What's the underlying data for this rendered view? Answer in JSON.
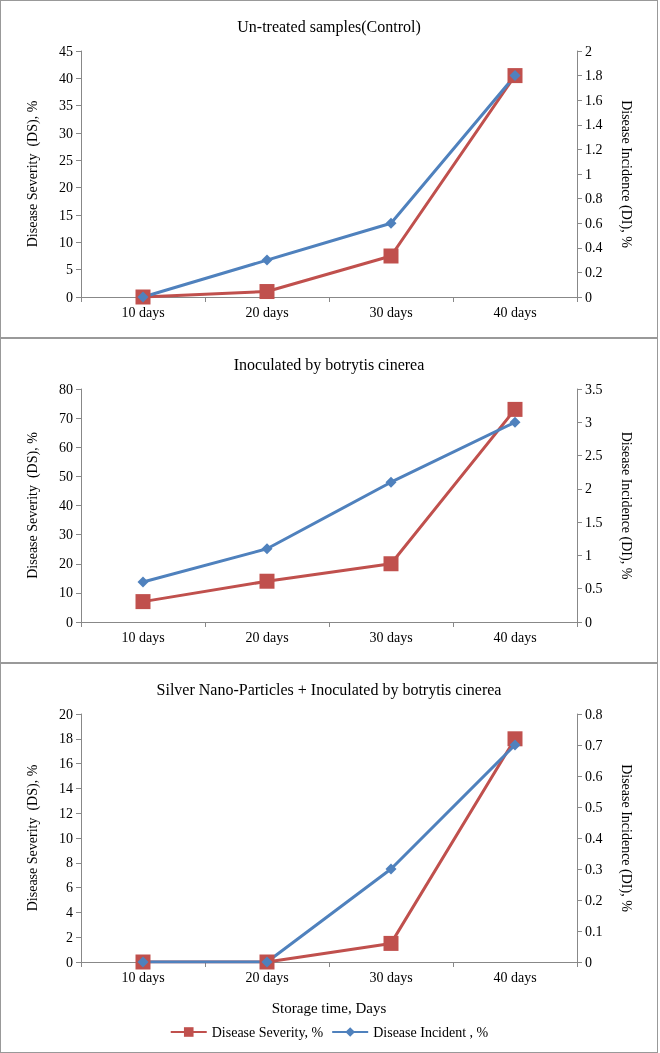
{
  "chart_data": [
    {
      "type": "line",
      "title": "Un-treated samples(Control)",
      "ylabel": "Disease Severity  (DS), %",
      "y2label": "Disease Incidence (DI), %",
      "categories": [
        "10 days",
        "20 days",
        "30 days",
        "40 days"
      ],
      "series": [
        {
          "color": "#c0504d",
          "marker": "square",
          "values": [
            0,
            1,
            7.5,
            40.5
          ]
        },
        {
          "color": "#4f81bd",
          "marker": "diamond",
          "axis": "y2",
          "values": [
            0,
            0.3,
            0.6,
            1.8
          ]
        }
      ],
      "ylim": [
        0,
        45
      ],
      "yticks": [
        0,
        5,
        10,
        15,
        20,
        25,
        30,
        35,
        40,
        45
      ],
      "y2lim": [
        0,
        2
      ],
      "y2ticks": [
        0,
        0.2,
        0.4,
        0.6,
        0.8,
        1,
        1.2,
        1.4,
        1.6,
        1.8,
        2
      ],
      "grid": false,
      "legend": false
    },
    {
      "type": "line",
      "title": "Inoculated by botrytis cinerea",
      "ylabel": "Disease Severity  (DS), %",
      "y2label": "Disease Incidence (DI), %",
      "categories": [
        "10 days",
        "20 days",
        "30 days",
        "40 days"
      ],
      "series": [
        {
          "color": "#c0504d",
          "marker": "square",
          "values": [
            7,
            14,
            20,
            73
          ]
        },
        {
          "color": "#4f81bd",
          "marker": "diamond",
          "axis": "y2",
          "values": [
            0.6,
            1.1,
            2.1,
            3
          ]
        }
      ],
      "ylim": [
        0,
        80
      ],
      "yticks": [
        0,
        10,
        20,
        30,
        40,
        50,
        60,
        70,
        80
      ],
      "y2lim": [
        0,
        3.5
      ],
      "y2ticks": [
        0,
        0.5,
        1,
        1.5,
        2,
        2.5,
        3,
        3.5
      ],
      "grid": false,
      "legend": false
    },
    {
      "type": "line",
      "title": "Silver Nano-Particles + Inoculated by botrytis cinerea",
      "xlabel": "Storage time, Days",
      "ylabel": "Disease Severity  (DS), %",
      "y2label": "Disease Incidence (DI), %",
      "categories": [
        "10 days",
        "20 days",
        "30 days",
        "40 days"
      ],
      "series": [
        {
          "name": "Disease Severity, %",
          "color": "#c0504d",
          "marker": "square",
          "values": [
            0,
            0,
            1.5,
            18
          ]
        },
        {
          "name": "Disease Incident , %",
          "color": "#4f81bd",
          "marker": "diamond",
          "axis": "y2",
          "values": [
            0,
            0,
            0.3,
            0.7
          ]
        }
      ],
      "ylim": [
        0,
        20
      ],
      "yticks": [
        0,
        2,
        4,
        6,
        8,
        10,
        12,
        14,
        16,
        18,
        20
      ],
      "y2lim": [
        0,
        0.8
      ],
      "y2ticks": [
        0,
        0.1,
        0.2,
        0.3,
        0.4,
        0.5,
        0.6,
        0.7,
        0.8
      ],
      "grid": false,
      "legend": "bottom"
    }
  ]
}
